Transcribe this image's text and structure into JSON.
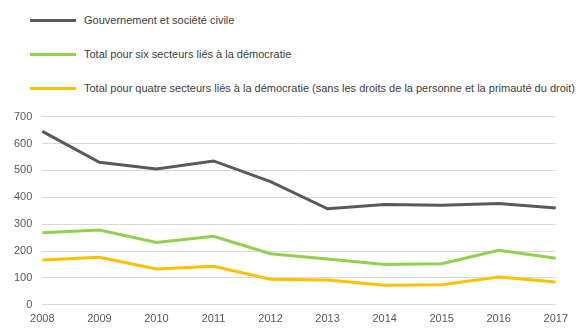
{
  "chart_data": {
    "type": "line",
    "categories": [
      "2008",
      "2009",
      "2010",
      "2011",
      "2012",
      "2013",
      "2014",
      "2015",
      "2016",
      "2017"
    ],
    "series": [
      {
        "name": "Gouvernement et société civile",
        "color": "#595959",
        "values": [
          645,
          530,
          505,
          535,
          458,
          357,
          373,
          370,
          377,
          360
        ]
      },
      {
        "name": "Total pour six secteurs liés à la démocratie",
        "color": "#92d050",
        "values": [
          268,
          278,
          232,
          255,
          190,
          170,
          150,
          153,
          203,
          173
        ]
      },
      {
        "name": "Total pour quatre secteurs liés à la démocratie (sans les droits de la personne et la primauté du droit)",
        "color": "#ffc000",
        "values": [
          167,
          177,
          133,
          143,
          95,
          92,
          73,
          75,
          103,
          85
        ]
      }
    ],
    "ylim": [
      0,
      700
    ],
    "yticks": [
      0,
      100,
      200,
      300,
      400,
      500,
      600,
      700
    ],
    "grid": true,
    "legend": "top-left"
  }
}
